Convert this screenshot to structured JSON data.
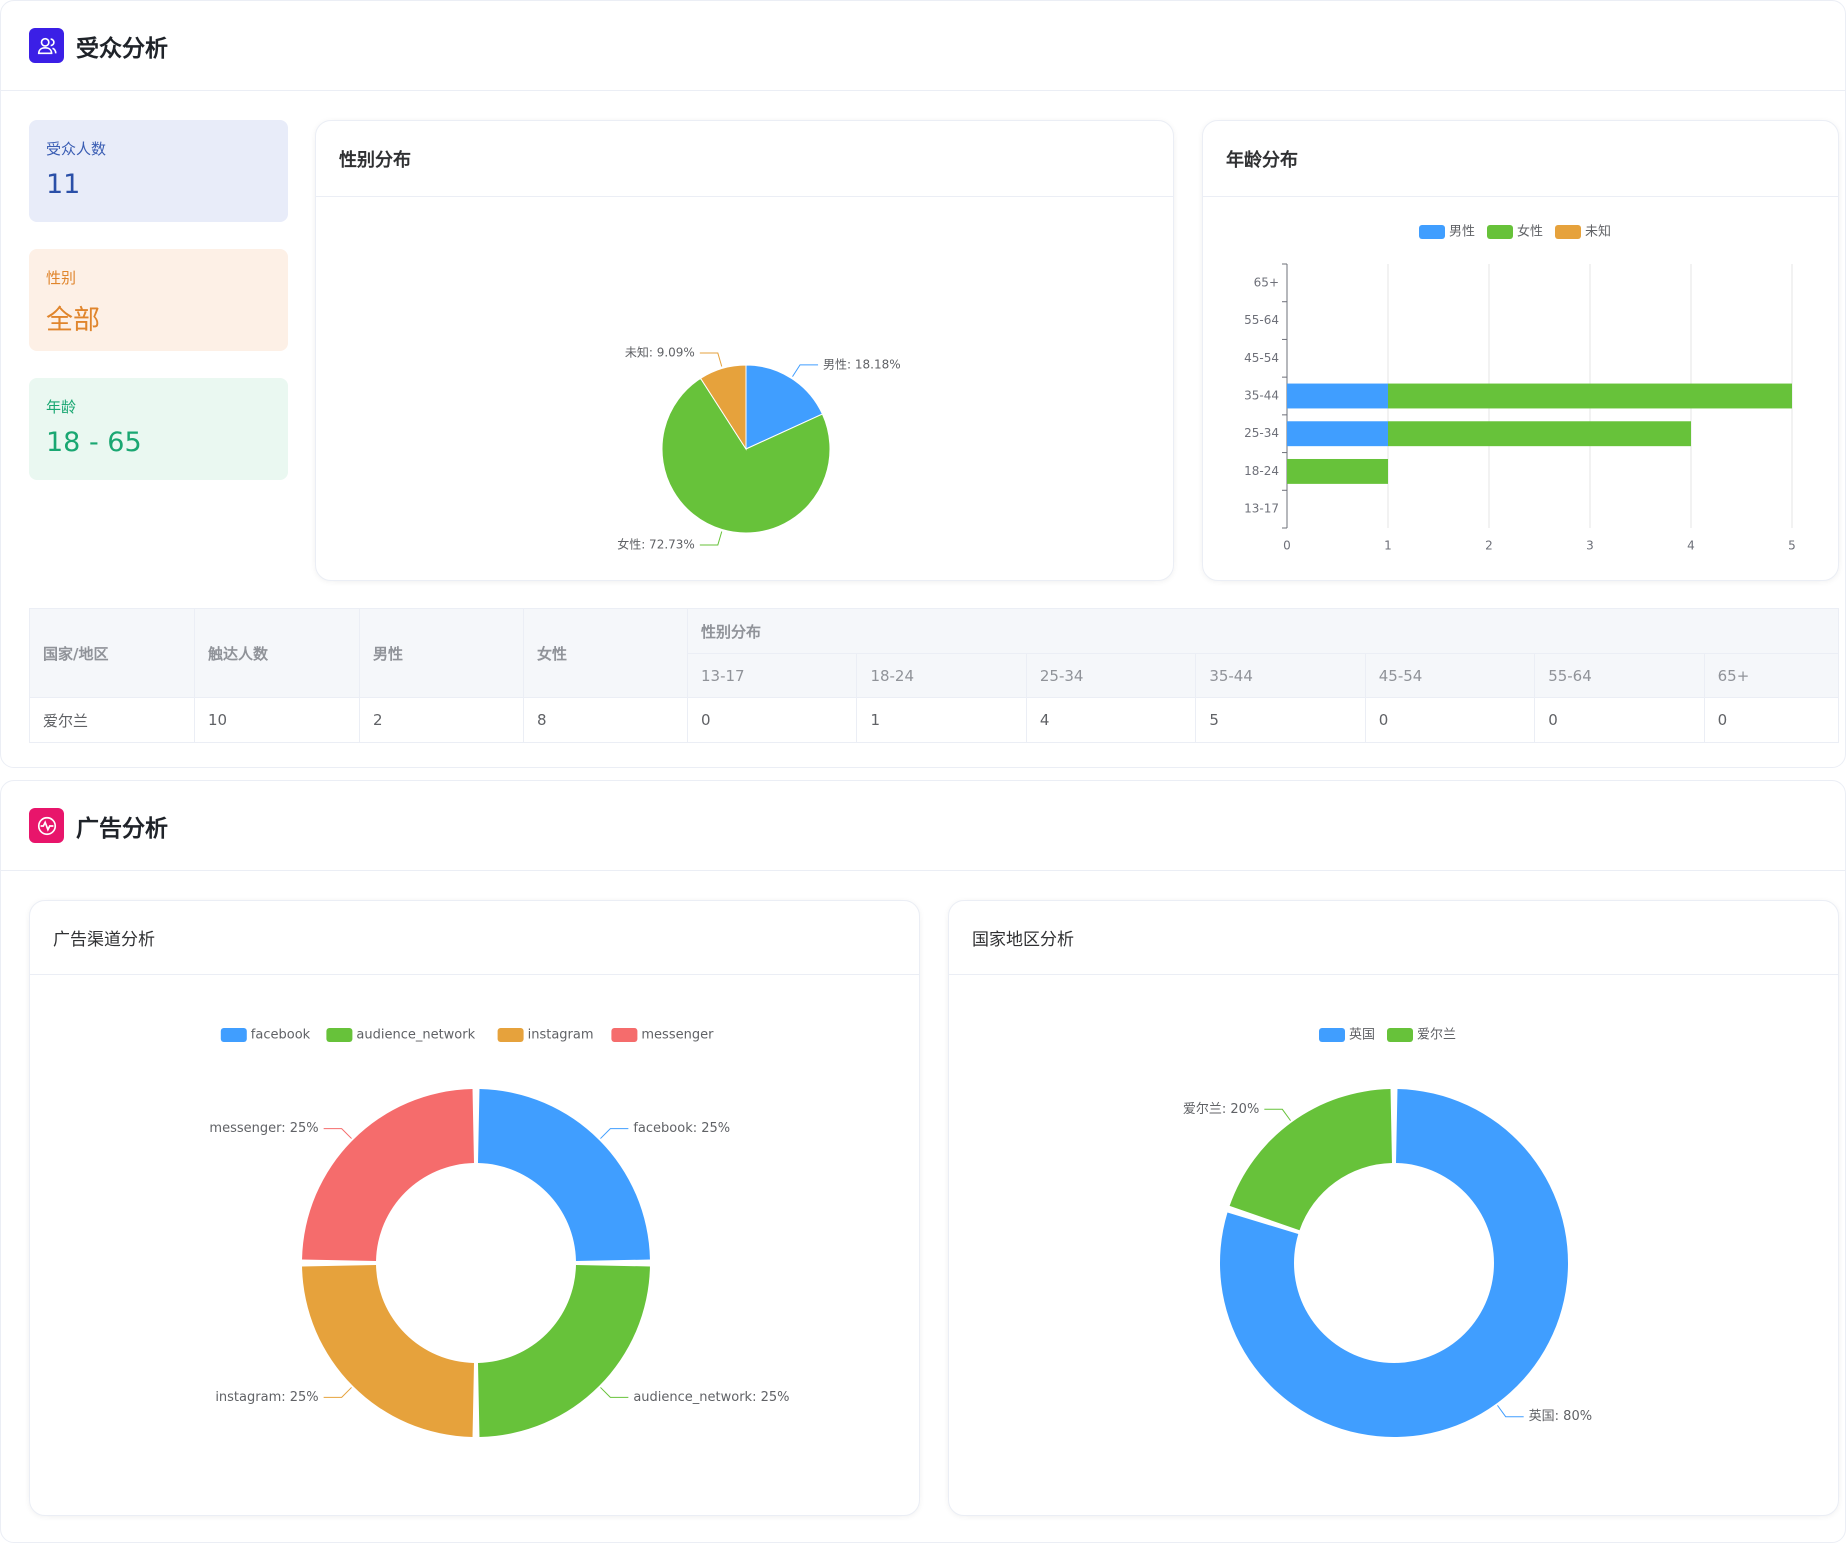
{
  "audience": {
    "title": "受众分析",
    "stats": [
      {
        "label": "受众人数",
        "value": "11"
      },
      {
        "label": "性别",
        "value": "全部"
      },
      {
        "label": "年龄",
        "value": "18 - 65"
      }
    ],
    "gender_panel_title": "性别分布",
    "age_panel_title": "年龄分布",
    "table": {
      "headers": {
        "country": "国家/地区",
        "reach": "触达人数",
        "male": "男性",
        "female": "女性",
        "gender_dist": "性别分布",
        "age_groups": [
          "13-17",
          "18-24",
          "25-34",
          "35-44",
          "45-54",
          "55-64",
          "65+"
        ]
      },
      "rows": [
        {
          "country": "爱尔兰",
          "reach": "10",
          "male": "2",
          "female": "8",
          "ages": [
            "0",
            "1",
            "4",
            "5",
            "0",
            "0",
            "0"
          ]
        }
      ]
    }
  },
  "ads": {
    "title": "广告分析",
    "channel_panel_title": "广告渠道分析",
    "region_panel_title": "国家地区分析"
  },
  "colors": {
    "blue": "#409eff",
    "green": "#67c23a",
    "orange": "#e6a23c",
    "red": "#f56c6c",
    "audience_icon": "#3b1fe6",
    "ads_icon": "#e8156b"
  },
  "chart_data": [
    {
      "id": "gender",
      "type": "pie",
      "slices": [
        {
          "name": "男性",
          "value": 18.18,
          "label": "男性: 18.18%",
          "color": "#409eff"
        },
        {
          "name": "女性",
          "value": 72.73,
          "label": "女性: 72.73%",
          "color": "#67c23a"
        },
        {
          "name": "未知",
          "value": 9.09,
          "label": "未知: 9.09%",
          "color": "#e6a23c"
        }
      ]
    },
    {
      "id": "age",
      "type": "bar",
      "orientation": "horizontal",
      "stacked": true,
      "categories": [
        "13-17",
        "18-24",
        "25-34",
        "35-44",
        "45-54",
        "55-64",
        "65+"
      ],
      "series": [
        {
          "name": "男性",
          "values": [
            0,
            0,
            1,
            1,
            0,
            0,
            0
          ],
          "color": "#409eff"
        },
        {
          "name": "女性",
          "values": [
            0,
            1,
            3,
            4,
            0,
            0,
            0
          ],
          "color": "#67c23a"
        },
        {
          "name": "未知",
          "values": [
            0,
            0,
            0,
            0,
            0,
            0,
            0
          ],
          "color": "#e6a23c"
        }
      ],
      "xlim": [
        0,
        5
      ],
      "xticks": [
        "0",
        "1",
        "2",
        "3",
        "4",
        "5"
      ],
      "legend": "top"
    },
    {
      "id": "channel",
      "type": "pie",
      "donut": true,
      "legend": "top",
      "slices": [
        {
          "name": "facebook",
          "value": 25,
          "label": "facebook: 25%",
          "color": "#409eff"
        },
        {
          "name": "audience_network",
          "value": 25,
          "label": "audience_network: 25%",
          "color": "#67c23a"
        },
        {
          "name": "instagram",
          "value": 25,
          "label": "instagram: 25%",
          "color": "#e6a23c"
        },
        {
          "name": "messenger",
          "value": 25,
          "label": "messenger: 25%",
          "color": "#f56c6c"
        }
      ]
    },
    {
      "id": "region",
      "type": "pie",
      "donut": true,
      "legend": "top",
      "slices": [
        {
          "name": "英国",
          "value": 80,
          "label": "英国: 80%",
          "color": "#409eff"
        },
        {
          "name": "爱尔兰",
          "value": 20,
          "label": "爱尔兰: 20%",
          "color": "#67c23a"
        }
      ]
    }
  ]
}
